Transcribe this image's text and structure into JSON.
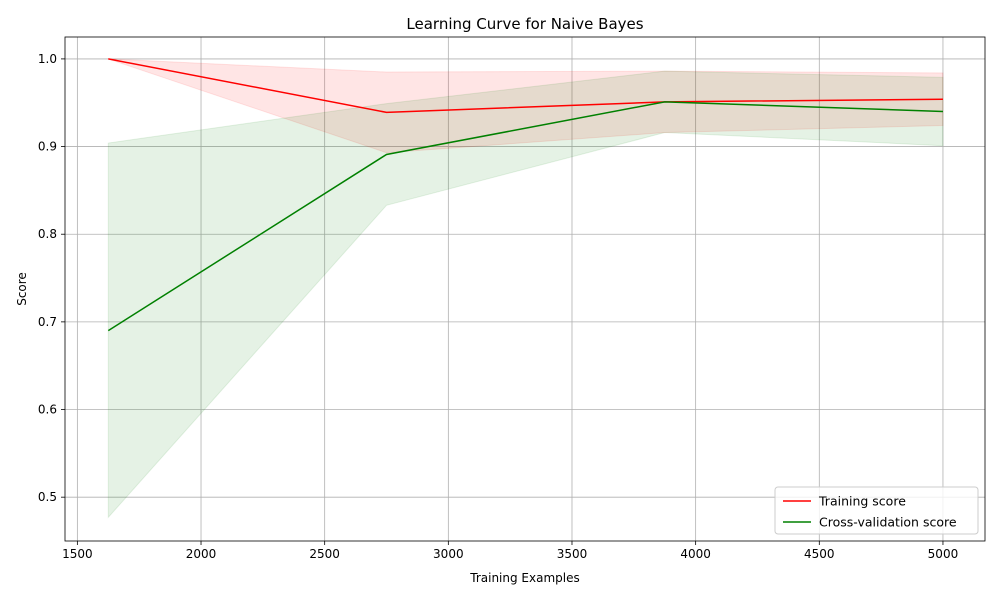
{
  "chart_data": {
    "type": "line",
    "title": "Learning Curve for Naive Bayes",
    "xlabel": "Training Examples",
    "ylabel": "Score",
    "xlim": [
      1450,
      5170
    ],
    "ylim": [
      0.45,
      1.025
    ],
    "xticks": [
      1500,
      2000,
      2500,
      3000,
      3500,
      4000,
      4500,
      5000
    ],
    "xtick_labels": [
      "1500",
      "2000",
      "2500",
      "3000",
      "3500",
      "4000",
      "4500",
      "5000"
    ],
    "yticks": [
      0.5,
      0.6,
      0.7,
      0.8,
      0.9,
      1.0
    ],
    "ytick_labels": [
      "0.5",
      "0.6",
      "0.7",
      "0.8",
      "0.9",
      "1.0"
    ],
    "grid": true,
    "legend_position": "lower-right",
    "x": [
      1625,
      2750,
      3875,
      5000
    ],
    "series": [
      {
        "name": "Training score",
        "color": "#ff0000",
        "values": [
          1.0,
          0.939,
          0.951,
          0.954
        ],
        "band_low": [
          1.0,
          0.893,
          0.916,
          0.924
        ],
        "band_high": [
          1.0,
          0.985,
          0.986,
          0.984
        ],
        "band_color": "#ff0000"
      },
      {
        "name": "Cross-validation score",
        "color": "#008000",
        "values": [
          0.69,
          0.891,
          0.951,
          0.94
        ],
        "band_low": [
          0.477,
          0.833,
          0.916,
          0.901
        ],
        "band_high": [
          0.904,
          0.949,
          0.986,
          0.979
        ],
        "band_color": "#008000"
      }
    ]
  }
}
